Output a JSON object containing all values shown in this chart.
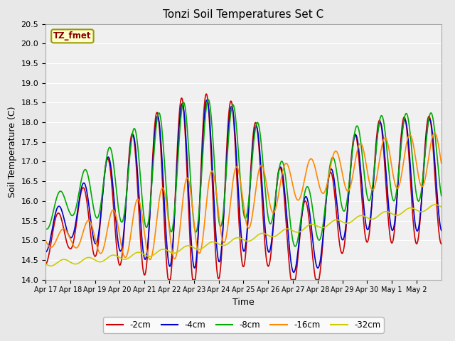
{
  "title": "Tonzi Soil Temperatures Set C",
  "xlabel": "Time",
  "ylabel": "Soil Temperature (C)",
  "ylim": [
    14.0,
    20.5
  ],
  "background_color": "#e8e8e8",
  "plot_bg_color": "#f0f0f0",
  "legend_label": "TZ_fmet",
  "series": {
    "-2cm": {
      "color": "#cc0000",
      "linewidth": 1.2
    },
    "-4cm": {
      "color": "#0000cc",
      "linewidth": 1.2
    },
    "-8cm": {
      "color": "#00aa00",
      "linewidth": 1.2
    },
    "-16cm": {
      "color": "#ff8800",
      "linewidth": 1.2
    },
    "-32cm": {
      "color": "#cccc00",
      "linewidth": 1.2
    }
  },
  "tick_labels": [
    "Apr 17",
    "Apr 18",
    "Apr 19",
    "Apr 20",
    "Apr 21",
    "Apr 22",
    "Apr 23",
    "Apr 24",
    "Apr 25",
    "Apr 26",
    "Apr 27",
    "Apr 28",
    "Apr 29",
    "Apr 30",
    "May 1",
    "May 2"
  ],
  "yticks": [
    14.0,
    14.5,
    15.0,
    15.5,
    16.0,
    16.5,
    17.0,
    17.5,
    18.0,
    18.5,
    19.0,
    19.5,
    20.0,
    20.5
  ]
}
